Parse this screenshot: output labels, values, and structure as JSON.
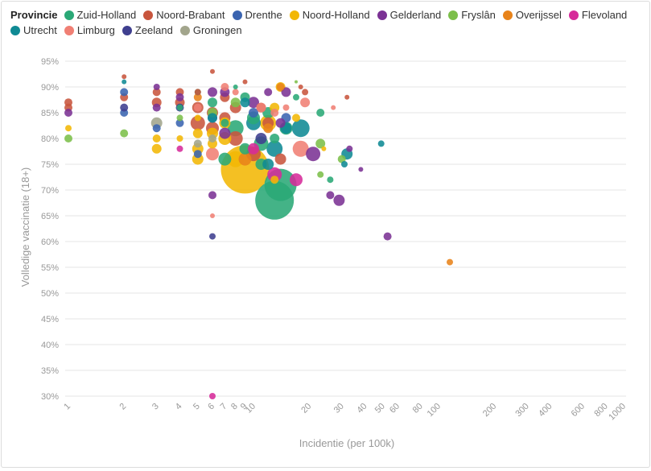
{
  "legend": {
    "title": "Provincie",
    "items": [
      {
        "label": "Zuid-Holland",
        "color": "#2aa876"
      },
      {
        "label": "Noord-Brabant",
        "color": "#c8553d"
      },
      {
        "label": "Drenthe",
        "color": "#3a64b0"
      },
      {
        "label": "Noord-Holland",
        "color": "#f2b705"
      },
      {
        "label": "Gelderland",
        "color": "#7b3294"
      },
      {
        "label": "Fryslân",
        "color": "#7cbf4a"
      },
      {
        "label": "Overijssel",
        "color": "#e8831a"
      },
      {
        "label": "Flevoland",
        "color": "#d62b9a"
      },
      {
        "label": "Utrecht",
        "color": "#0f8a94"
      },
      {
        "label": "Limburg",
        "color": "#f07f74"
      },
      {
        "label": "Zeeland",
        "color": "#3f3f8f"
      },
      {
        "label": "Groningen",
        "color": "#a2a58c"
      }
    ]
  },
  "chart_data": {
    "type": "scatter",
    "xlabel": "Incidentie (per 100k)",
    "ylabel": "Volledige vaccinatie (18+)",
    "xscale": "log",
    "xlim": [
      1,
      1000
    ],
    "ylim": [
      30,
      95
    ],
    "xticks": [
      "1",
      "2",
      "3",
      "4",
      "5",
      "6",
      "7",
      "8",
      "9",
      "10",
      "20",
      "30",
      "40",
      "50",
      "60",
      "80",
      "100",
      "200",
      "300",
      "400",
      "600",
      "800",
      "1000"
    ],
    "xtick_values": [
      1,
      2,
      3,
      4,
      5,
      6,
      7,
      8,
      9,
      10,
      20,
      30,
      40,
      50,
      60,
      80,
      100,
      200,
      300,
      400,
      600,
      800,
      1000
    ],
    "yticks": [
      "30%",
      "35%",
      "40%",
      "45%",
      "50%",
      "55%",
      "60%",
      "65%",
      "70%",
      "75%",
      "80%",
      "85%",
      "90%",
      "95%"
    ],
    "ytick_values": [
      30,
      35,
      40,
      45,
      50,
      55,
      60,
      65,
      70,
      75,
      80,
      85,
      90,
      95
    ],
    "grid": "horizontal",
    "legend_position": "top",
    "series": [
      {
        "name": "Zuid-Holland",
        "color": "#2aa876",
        "points": [
          {
            "x": 13,
            "y": 68,
            "s": 24
          },
          {
            "x": 14,
            "y": 71,
            "s": 20
          },
          {
            "x": 8,
            "y": 82,
            "s": 10
          },
          {
            "x": 11,
            "y": 79,
            "s": 9
          },
          {
            "x": 9,
            "y": 88,
            "s": 6
          },
          {
            "x": 7,
            "y": 76,
            "s": 8
          },
          {
            "x": 12,
            "y": 85,
            "s": 7
          },
          {
            "x": 10,
            "y": 84,
            "s": 8
          },
          {
            "x": 6,
            "y": 87,
            "s": 6
          },
          {
            "x": 23,
            "y": 85,
            "s": 5
          },
          {
            "x": 26,
            "y": 72,
            "s": 4
          },
          {
            "x": 5,
            "y": 89,
            "s": 4
          },
          {
            "x": 15,
            "y": 82,
            "s": 8
          },
          {
            "x": 9,
            "y": 78,
            "s": 7
          },
          {
            "x": 11,
            "y": 75,
            "s": 7
          },
          {
            "x": 13,
            "y": 80,
            "s": 6
          },
          {
            "x": 7,
            "y": 83,
            "s": 5
          },
          {
            "x": 17,
            "y": 88,
            "s": 4
          },
          {
            "x": 4,
            "y": 86,
            "s": 4
          },
          {
            "x": 8,
            "y": 90,
            "s": 3
          }
        ]
      },
      {
        "name": "Noord-Brabant",
        "color": "#c8553d",
        "points": [
          {
            "x": 1,
            "y": 87,
            "s": 5
          },
          {
            "x": 1,
            "y": 86,
            "s": 5
          },
          {
            "x": 2,
            "y": 92,
            "s": 3
          },
          {
            "x": 2,
            "y": 88,
            "s": 5
          },
          {
            "x": 3,
            "y": 89,
            "s": 5
          },
          {
            "x": 3,
            "y": 87,
            "s": 6
          },
          {
            "x": 4,
            "y": 89,
            "s": 5
          },
          {
            "x": 4,
            "y": 87,
            "s": 6
          },
          {
            "x": 5,
            "y": 89,
            "s": 4
          },
          {
            "x": 5,
            "y": 86,
            "s": 7
          },
          {
            "x": 5,
            "y": 83,
            "s": 9
          },
          {
            "x": 6,
            "y": 93,
            "s": 3
          },
          {
            "x": 6,
            "y": 85,
            "s": 7
          },
          {
            "x": 6,
            "y": 82,
            "s": 8
          },
          {
            "x": 7,
            "y": 88,
            "s": 6
          },
          {
            "x": 7,
            "y": 84,
            "s": 7
          },
          {
            "x": 8,
            "y": 80,
            "s": 9
          },
          {
            "x": 9,
            "y": 91,
            "s": 3
          },
          {
            "x": 10,
            "y": 77,
            "s": 9
          },
          {
            "x": 12,
            "y": 83,
            "s": 7
          },
          {
            "x": 14,
            "y": 76,
            "s": 7
          },
          {
            "x": 18,
            "y": 90,
            "s": 3
          },
          {
            "x": 19,
            "y": 89,
            "s": 4
          },
          {
            "x": 32,
            "y": 88,
            "s": 3
          },
          {
            "x": 11,
            "y": 86,
            "s": 6
          },
          {
            "x": 8,
            "y": 86,
            "s": 7
          }
        ]
      },
      {
        "name": "Drenthe",
        "color": "#3a64b0",
        "points": [
          {
            "x": 2,
            "y": 89,
            "s": 5
          },
          {
            "x": 2,
            "y": 85,
            "s": 5
          },
          {
            "x": 3,
            "y": 82,
            "s": 5
          },
          {
            "x": 4,
            "y": 83,
            "s": 5
          },
          {
            "x": 5,
            "y": 77,
            "s": 5
          },
          {
            "x": 6,
            "y": 84,
            "s": 6
          },
          {
            "x": 10,
            "y": 85,
            "s": 6
          },
          {
            "x": 15,
            "y": 84,
            "s": 6
          }
        ]
      },
      {
        "name": "Noord-Holland",
        "color": "#f2b705",
        "points": [
          {
            "x": 1,
            "y": 82,
            "s": 4
          },
          {
            "x": 3,
            "y": 80,
            "s": 5
          },
          {
            "x": 3,
            "y": 78,
            "s": 6
          },
          {
            "x": 4,
            "y": 80,
            "s": 4
          },
          {
            "x": 5,
            "y": 84,
            "s": 4
          },
          {
            "x": 5,
            "y": 81,
            "s": 6
          },
          {
            "x": 5,
            "y": 78,
            "s": 7
          },
          {
            "x": 5,
            "y": 76,
            "s": 7
          },
          {
            "x": 6,
            "y": 81,
            "s": 7
          },
          {
            "x": 6,
            "y": 79,
            "s": 6
          },
          {
            "x": 7,
            "y": 83,
            "s": 7
          },
          {
            "x": 7,
            "y": 80,
            "s": 8
          },
          {
            "x": 9,
            "y": 74,
            "s": 30
          },
          {
            "x": 8,
            "y": 76,
            "s": 10
          },
          {
            "x": 12,
            "y": 83,
            "s": 10
          },
          {
            "x": 13,
            "y": 86,
            "s": 6
          },
          {
            "x": 14,
            "y": 90,
            "s": 6
          },
          {
            "x": 17,
            "y": 84,
            "s": 5
          },
          {
            "x": 24,
            "y": 78,
            "s": 3
          },
          {
            "x": 13,
            "y": 72,
            "s": 5
          }
        ]
      },
      {
        "name": "Gelderland",
        "color": "#7b3294",
        "points": [
          {
            "x": 1,
            "y": 85,
            "s": 5
          },
          {
            "x": 3,
            "y": 90,
            "s": 4
          },
          {
            "x": 3,
            "y": 86,
            "s": 5
          },
          {
            "x": 4,
            "y": 88,
            "s": 5
          },
          {
            "x": 6,
            "y": 89,
            "s": 6
          },
          {
            "x": 6,
            "y": 69,
            "s": 5
          },
          {
            "x": 7,
            "y": 89,
            "s": 6
          },
          {
            "x": 7,
            "y": 81,
            "s": 7
          },
          {
            "x": 10,
            "y": 87,
            "s": 7
          },
          {
            "x": 12,
            "y": 89,
            "s": 5
          },
          {
            "x": 15,
            "y": 89,
            "s": 6
          },
          {
            "x": 21,
            "y": 77,
            "s": 9
          },
          {
            "x": 26,
            "y": 69,
            "s": 5
          },
          {
            "x": 29,
            "y": 68,
            "s": 7
          },
          {
            "x": 33,
            "y": 78,
            "s": 4
          },
          {
            "x": 38,
            "y": 74,
            "s": 3
          },
          {
            "x": 53,
            "y": 61,
            "s": 5
          },
          {
            "x": 14,
            "y": 83,
            "s": 6
          }
        ]
      },
      {
        "name": "Fryslân",
        "color": "#7cbf4a",
        "points": [
          {
            "x": 1,
            "y": 80,
            "s": 5
          },
          {
            "x": 2,
            "y": 81,
            "s": 5
          },
          {
            "x": 4,
            "y": 84,
            "s": 4
          },
          {
            "x": 6,
            "y": 85,
            "s": 6
          },
          {
            "x": 8,
            "y": 87,
            "s": 6
          },
          {
            "x": 17,
            "y": 91,
            "s": 2
          },
          {
            "x": 23,
            "y": 79,
            "s": 6
          },
          {
            "x": 23,
            "y": 73,
            "s": 4
          },
          {
            "x": 30,
            "y": 76,
            "s": 5
          }
        ]
      },
      {
        "name": "Overijssel",
        "color": "#e8831a",
        "points": [
          {
            "x": 5,
            "y": 88,
            "s": 5
          },
          {
            "x": 9,
            "y": 76,
            "s": 8
          },
          {
            "x": 14,
            "y": 90,
            "s": 5
          },
          {
            "x": 12,
            "y": 82,
            "s": 6
          },
          {
            "x": 115,
            "y": 56,
            "s": 4
          }
        ]
      },
      {
        "name": "Flevoland",
        "color": "#d62b9a",
        "points": [
          {
            "x": 4,
            "y": 78,
            "s": 4
          },
          {
            "x": 6,
            "y": 30,
            "s": 4
          },
          {
            "x": 13,
            "y": 73,
            "s": 9
          },
          {
            "x": 17,
            "y": 72,
            "s": 8
          },
          {
            "x": 10,
            "y": 78,
            "s": 7
          }
        ]
      },
      {
        "name": "Utrecht",
        "color": "#0f8a94",
        "points": [
          {
            "x": 2,
            "y": 91,
            "s": 3
          },
          {
            "x": 6,
            "y": 84,
            "s": 6
          },
          {
            "x": 9,
            "y": 87,
            "s": 6
          },
          {
            "x": 10,
            "y": 83,
            "s": 9
          },
          {
            "x": 13,
            "y": 78,
            "s": 10
          },
          {
            "x": 15,
            "y": 82,
            "s": 7
          },
          {
            "x": 18,
            "y": 82,
            "s": 11
          },
          {
            "x": 32,
            "y": 77,
            "s": 7
          },
          {
            "x": 31,
            "y": 75,
            "s": 4
          },
          {
            "x": 49,
            "y": 79,
            "s": 4
          },
          {
            "x": 12,
            "y": 75,
            "s": 7
          }
        ]
      },
      {
        "name": "Limburg",
        "color": "#f07f74",
        "points": [
          {
            "x": 5,
            "y": 86,
            "s": 5
          },
          {
            "x": 6,
            "y": 65,
            "s": 3
          },
          {
            "x": 6,
            "y": 77,
            "s": 8
          },
          {
            "x": 7,
            "y": 90,
            "s": 5
          },
          {
            "x": 11,
            "y": 86,
            "s": 6
          },
          {
            "x": 13,
            "y": 85,
            "s": 5
          },
          {
            "x": 19,
            "y": 87,
            "s": 6
          },
          {
            "x": 18,
            "y": 78,
            "s": 10
          },
          {
            "x": 27,
            "y": 86,
            "s": 3
          },
          {
            "x": 15,
            "y": 86,
            "s": 4
          },
          {
            "x": 8,
            "y": 89,
            "s": 4
          }
        ]
      },
      {
        "name": "Zeeland",
        "color": "#3f3f8f",
        "points": [
          {
            "x": 2,
            "y": 86,
            "s": 5
          },
          {
            "x": 4,
            "y": 86,
            "s": 5
          },
          {
            "x": 6,
            "y": 61,
            "s": 4
          },
          {
            "x": 11,
            "y": 80,
            "s": 7
          }
        ]
      },
      {
        "name": "Groningen",
        "color": "#a2a58c",
        "points": [
          {
            "x": 3,
            "y": 83,
            "s": 7
          },
          {
            "x": 5,
            "y": 79,
            "s": 5
          },
          {
            "x": 6,
            "y": 80,
            "s": 5
          }
        ]
      }
    ]
  }
}
